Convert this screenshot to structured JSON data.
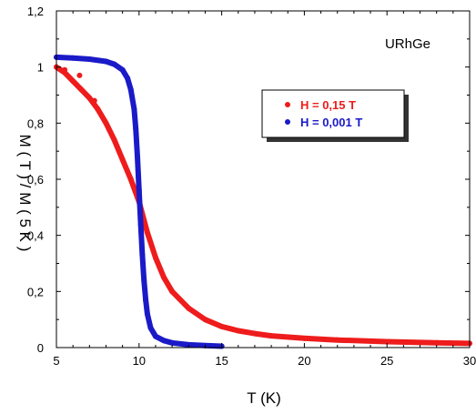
{
  "chart_data": {
    "type": "scatter",
    "title": "",
    "annotation": "URhGe",
    "xlabel": "T (K)",
    "ylabel": "M ( T ) / M ( 5 K )",
    "xlim": [
      5,
      30
    ],
    "ylim": [
      0,
      1.2
    ],
    "xticks": [
      5,
      10,
      15,
      20,
      25,
      30
    ],
    "yticks": [
      0,
      0.2,
      0.4,
      0.6,
      0.8,
      1,
      1.2
    ],
    "xtick_labels": [
      "5",
      "10",
      "15",
      "20",
      "25",
      "30"
    ],
    "ytick_labels": [
      "0",
      "0,2",
      "0,4",
      "0,6",
      "0,8",
      "1",
      "1,2"
    ],
    "grid": false,
    "legend_position": "upper-right",
    "series": [
      {
        "name": "H = 0,15 T",
        "color": "#ee1c1c",
        "x": [
          5.0,
          5.5,
          6.0,
          6.5,
          7.0,
          7.5,
          8.0,
          8.5,
          9.0,
          9.5,
          10.0,
          10.5,
          11.0,
          11.5,
          12.0,
          13.0,
          14.0,
          15.0,
          16.0,
          17.0,
          18.0,
          20.0,
          22.0,
          25.0,
          28.0,
          30.0
        ],
        "y": [
          1.0,
          0.98,
          0.95,
          0.92,
          0.89,
          0.85,
          0.8,
          0.74,
          0.67,
          0.6,
          0.52,
          0.41,
          0.32,
          0.25,
          0.2,
          0.14,
          0.1,
          0.075,
          0.06,
          0.05,
          0.042,
          0.033,
          0.027,
          0.021,
          0.017,
          0.015
        ],
        "outliers": {
          "x": [
            5.5,
            6.4,
            7.3
          ],
          "y": [
            0.99,
            0.97,
            0.88
          ]
        }
      },
      {
        "name": "H = 0,001 T",
        "color": "#1a1ac8",
        "x": [
          5.0,
          6.0,
          7.0,
          8.0,
          8.5,
          9.0,
          9.3,
          9.5,
          9.7,
          9.8,
          9.9,
          10.0,
          10.1,
          10.2,
          10.3,
          10.4,
          10.5,
          10.7,
          11.0,
          11.5,
          12.0,
          13.0,
          14.0,
          15.0
        ],
        "y": [
          1.035,
          1.032,
          1.028,
          1.02,
          1.01,
          0.99,
          0.96,
          0.92,
          0.85,
          0.78,
          0.68,
          0.56,
          0.44,
          0.33,
          0.24,
          0.17,
          0.12,
          0.07,
          0.04,
          0.025,
          0.017,
          0.01,
          0.007,
          0.005
        ]
      }
    ]
  }
}
